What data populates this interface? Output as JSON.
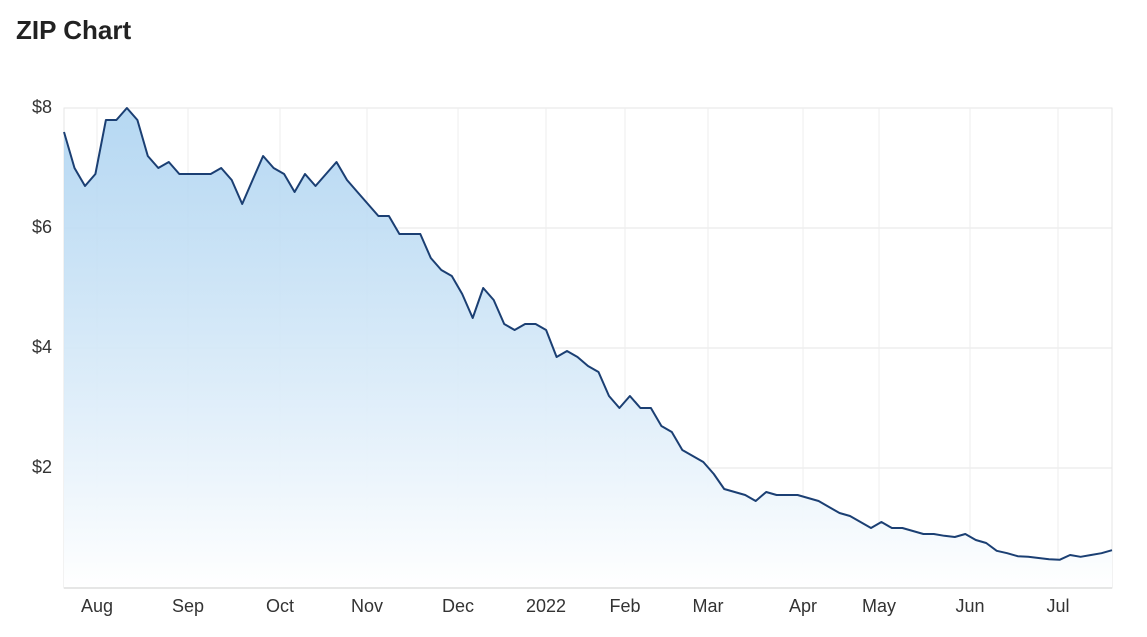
{
  "chart_data": {
    "type": "area",
    "title": "ZIP Chart",
    "values": [
      7.6,
      7.0,
      6.7,
      6.9,
      7.8,
      7.8,
      8.0,
      7.8,
      7.2,
      7.0,
      7.1,
      6.9,
      6.9,
      6.9,
      6.9,
      7.0,
      6.8,
      6.4,
      6.8,
      7.2,
      7.0,
      6.9,
      6.6,
      6.9,
      6.7,
      6.9,
      7.1,
      6.8,
      6.6,
      6.4,
      6.2,
      6.2,
      5.9,
      5.9,
      5.9,
      5.5,
      5.3,
      5.2,
      4.9,
      4.5,
      5.0,
      4.8,
      4.4,
      4.3,
      4.4,
      4.4,
      4.3,
      3.85,
      3.95,
      3.85,
      3.7,
      3.6,
      3.2,
      3.0,
      3.2,
      3.0,
      3.0,
      2.7,
      2.6,
      2.3,
      2.2,
      2.1,
      1.9,
      1.65,
      1.6,
      1.55,
      1.45,
      1.6,
      1.55,
      1.55,
      1.55,
      1.5,
      1.45,
      1.35,
      1.25,
      1.2,
      1.1,
      1.0,
      1.1,
      1.0,
      1.0,
      0.95,
      0.9,
      0.9,
      0.87,
      0.85,
      0.9,
      0.8,
      0.75,
      0.62,
      0.58,
      0.53,
      0.52,
      0.5,
      0.48,
      0.47,
      0.55,
      0.52,
      0.55,
      0.58,
      0.63
    ],
    "color": "#1b3f73",
    "fill_color": "#a9d1f0",
    "xlim": [
      0,
      100
    ],
    "xticks": [
      {
        "value": 3.15,
        "label": "Aug"
      },
      {
        "value": 11.83,
        "label": "Sep"
      },
      {
        "value": 20.61,
        "label": "Oct"
      },
      {
        "value": 28.91,
        "label": "Nov"
      },
      {
        "value": 37.6,
        "label": "Dec"
      },
      {
        "value": 45.99,
        "label": "2022"
      },
      {
        "value": 53.53,
        "label": "Feb"
      },
      {
        "value": 61.45,
        "label": "Mar"
      },
      {
        "value": 70.52,
        "label": "Apr"
      },
      {
        "value": 77.77,
        "label": "May"
      },
      {
        "value": 86.45,
        "label": "Jun"
      },
      {
        "value": 94.85,
        "label": "Jul"
      }
    ],
    "ylim": [
      0,
      8
    ],
    "yticks": [
      {
        "value": 2,
        "label": "$2"
      },
      {
        "value": 4,
        "label": "$4"
      },
      {
        "value": 6,
        "label": "$6"
      },
      {
        "value": 8,
        "label": "$8"
      }
    ],
    "grid": true
  }
}
